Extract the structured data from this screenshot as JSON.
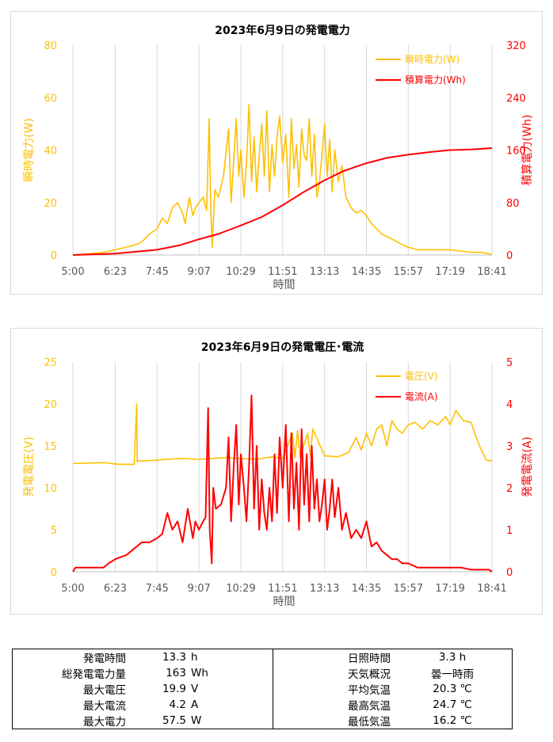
{
  "chart_data": [
    {
      "type": "line",
      "title": "2023年6月9日の発電電力",
      "xlabel": "時間",
      "ylabel_left": "瞬時電力(W)",
      "ylabel_right": "積算電力(Wh)",
      "x_ticks": [
        "5:00",
        "6:23",
        "7:45",
        "9:07",
        "10:29",
        "11:51",
        "13:13",
        "14:35",
        "15:57",
        "17:19",
        "18:41"
      ],
      "ylim_left": [
        0,
        80
      ],
      "yticks_left": [
        "0",
        "20",
        "40",
        "60",
        "80"
      ],
      "ylim_right": [
        0,
        320
      ],
      "yticks_right": [
        "0",
        "80",
        "160",
        "240",
        "320"
      ],
      "grid": "vertical",
      "legend_position": "top-right",
      "series": [
        {
          "name": "瞬時電力(W)",
          "axis": "left",
          "color": "#FFC000",
          "x": [
            "5:00",
            "6:00",
            "6:23",
            "6:45",
            "7:05",
            "7:15",
            "7:30",
            "7:45",
            "7:55",
            "8:05",
            "8:15",
            "8:25",
            "8:35",
            "8:40",
            "8:48",
            "8:55",
            "9:00",
            "9:07",
            "9:15",
            "9:22",
            "9:27",
            "9:30",
            "9:33",
            "9:38",
            "9:45",
            "9:55",
            "10:05",
            "10:10",
            "10:15",
            "10:20",
            "10:25",
            "10:29",
            "10:35",
            "10:40",
            "10:45",
            "10:50",
            "10:55",
            "11:00",
            "11:05",
            "11:10",
            "11:15",
            "11:20",
            "11:25",
            "11:30",
            "11:35",
            "11:40",
            "11:45",
            "11:51",
            "11:57",
            "12:03",
            "12:08",
            "12:13",
            "12:18",
            "12:23",
            "12:28",
            "12:33",
            "12:38",
            "12:43",
            "12:48",
            "12:53",
            "12:58",
            "13:03",
            "13:08",
            "13:13",
            "13:18",
            "13:23",
            "13:28",
            "13:33",
            "13:40",
            "13:47",
            "13:55",
            "14:05",
            "14:15",
            "14:25",
            "14:35",
            "14:45",
            "14:55",
            "15:05",
            "15:15",
            "15:25",
            "15:35",
            "15:45",
            "15:57",
            "16:15",
            "16:35",
            "16:55",
            "17:19",
            "17:40",
            "18:00",
            "18:20",
            "18:35",
            "18:41"
          ],
          "values": [
            0,
            1,
            2,
            3,
            4,
            5,
            8,
            10,
            14,
            12,
            18,
            20,
            16,
            12,
            22,
            15,
            18,
            20,
            22,
            17,
            52,
            18,
            3,
            25,
            22,
            30,
            48,
            20,
            36,
            52,
            30,
            40,
            22,
            35,
            57.5,
            28,
            45,
            24,
            38,
            50,
            30,
            55,
            24,
            42,
            30,
            45,
            53,
            35,
            46,
            22,
            52,
            33,
            42,
            26,
            48,
            38,
            36,
            52,
            30,
            46,
            22,
            28,
            38,
            50,
            30,
            44,
            24,
            40,
            28,
            34,
            22,
            18,
            16,
            17,
            15,
            12,
            10,
            8,
            7,
            6,
            5,
            4,
            3,
            2,
            2,
            2,
            2,
            1.5,
            1,
            1,
            0.5,
            0
          ]
        },
        {
          "name": "積算電力(Wh)",
          "axis": "right",
          "color": "#FF0000",
          "x": [
            "5:00",
            "6:23",
            "7:45",
            "8:30",
            "9:07",
            "9:45",
            "10:29",
            "11:10",
            "11:51",
            "12:30",
            "13:13",
            "13:50",
            "14:35",
            "15:15",
            "15:57",
            "16:40",
            "17:19",
            "18:00",
            "18:41"
          ],
          "values": [
            0,
            2,
            8,
            15,
            24,
            32,
            45,
            58,
            76,
            95,
            114,
            128,
            140,
            148,
            153,
            157,
            160,
            161,
            163
          ]
        }
      ]
    },
    {
      "type": "line",
      "title": "2023年6月9日の発電電圧･電流",
      "xlabel": "時間",
      "ylabel_left": "発電電圧(V)",
      "ylabel_right": "発電電流(A)",
      "x_ticks": [
        "5:00",
        "6:23",
        "7:45",
        "9:07",
        "10:29",
        "11:51",
        "13:13",
        "14:35",
        "15:57",
        "17:19",
        "18:41"
      ],
      "ylim_left": [
        0,
        25
      ],
      "yticks_left": [
        "0",
        "5",
        "10",
        "15",
        "20",
        "25"
      ],
      "ylim_right": [
        0,
        5
      ],
      "yticks_right": [
        "0",
        "1",
        "2",
        "3",
        "4",
        "5"
      ],
      "grid": "vertical",
      "legend_position": "top-right",
      "series": [
        {
          "name": "電圧(V)",
          "axis": "left",
          "color": "#FFC000",
          "x": [
            "5:00",
            "6:00",
            "6:30",
            "7:00",
            "7:05",
            "7:06",
            "7:07",
            "7:15",
            "7:45",
            "8:30",
            "9:07",
            "10:00",
            "10:29",
            "11:00",
            "11:30",
            "11:51",
            "12:10",
            "12:15",
            "12:20",
            "12:25",
            "12:40",
            "12:45",
            "12:50",
            "13:13",
            "13:40",
            "14:00",
            "14:15",
            "14:25",
            "14:35",
            "14:45",
            "14:55",
            "15:05",
            "15:15",
            "15:25",
            "15:35",
            "15:45",
            "15:57",
            "16:10",
            "16:25",
            "16:40",
            "16:55",
            "17:10",
            "17:19",
            "17:30",
            "17:45",
            "18:00",
            "18:10",
            "18:20",
            "18:30",
            "18:41"
          ],
          "values": [
            12.9,
            13.0,
            12.8,
            12.8,
            20,
            13.1,
            13.2,
            13.2,
            13.3,
            13.5,
            13.4,
            13.6,
            13.5,
            13.4,
            13.7,
            13.5,
            16.5,
            13.6,
            16.8,
            13.7,
            16.5,
            13.7,
            17,
            13.8,
            13.7,
            14.2,
            16,
            14.5,
            16.5,
            15,
            17,
            17.5,
            15,
            18,
            17,
            16.5,
            17.5,
            17.8,
            17,
            18,
            17.5,
            18.5,
            17.5,
            19.2,
            18,
            17.8,
            16,
            14.5,
            13.3,
            13.2
          ]
        },
        {
          "name": "電流(A)",
          "axis": "right",
          "color": "#FF0000",
          "x": [
            "5:00",
            "5:05",
            "6:00",
            "6:10",
            "6:23",
            "6:45",
            "7:05",
            "7:15",
            "7:30",
            "7:45",
            "7:55",
            "8:05",
            "8:15",
            "8:25",
            "8:35",
            "8:45",
            "8:55",
            "9:00",
            "9:07",
            "9:15",
            "9:20",
            "9:25",
            "9:28",
            "9:32",
            "9:35",
            "9:40",
            "9:50",
            "10:00",
            "10:05",
            "10:10",
            "10:15",
            "10:20",
            "10:25",
            "10:29",
            "10:35",
            "10:40",
            "10:45",
            "10:50",
            "10:55",
            "11:00",
            "11:05",
            "11:10",
            "11:15",
            "11:20",
            "11:25",
            "11:30",
            "11:35",
            "11:40",
            "11:45",
            "11:51",
            "11:57",
            "12:03",
            "12:08",
            "12:13",
            "12:18",
            "12:23",
            "12:28",
            "12:33",
            "12:38",
            "12:43",
            "12:48",
            "12:53",
            "12:58",
            "13:03",
            "13:08",
            "13:13",
            "13:18",
            "13:23",
            "13:28",
            "13:33",
            "13:40",
            "13:47",
            "13:55",
            "14:05",
            "14:15",
            "14:25",
            "14:35",
            "14:45",
            "14:55",
            "15:05",
            "15:15",
            "15:25",
            "15:35",
            "15:45",
            "15:57",
            "16:15",
            "16:35",
            "16:55",
            "17:19",
            "17:40",
            "18:00",
            "18:20",
            "18:35",
            "18:41"
          ],
          "values": [
            0,
            0.1,
            0.1,
            0.2,
            0.3,
            0.4,
            0.6,
            0.7,
            0.7,
            0.8,
            0.9,
            1.4,
            1.0,
            1.2,
            0.7,
            1.5,
            0.8,
            1.2,
            1.0,
            1.2,
            1.3,
            3.9,
            1.0,
            0.2,
            2.0,
            1.5,
            1.6,
            2.0,
            3.2,
            1.2,
            2.5,
            3.5,
            1.6,
            2.8,
            2.0,
            1.2,
            2.5,
            4.2,
            1.5,
            3.0,
            1.0,
            2.2,
            1.4,
            1.0,
            2.0,
            1.2,
            2.8,
            1.4,
            3.2,
            2.0,
            3.5,
            1.2,
            3.3,
            1.5,
            2.6,
            1.0,
            3.4,
            1.6,
            2.8,
            1.2,
            3.0,
            1.5,
            2.2,
            1.2,
            1.6,
            2.2,
            1.0,
            1.5,
            2.2,
            1.3,
            2.0,
            1.0,
            1.4,
            0.8,
            1.0,
            0.8,
            1.2,
            0.6,
            0.7,
            0.5,
            0.4,
            0.3,
            0.3,
            0.2,
            0.2,
            0.1,
            0.1,
            0.1,
            0.1,
            0.1,
            0.05,
            0.05,
            0.05,
            0
          ]
        }
      ]
    }
  ],
  "summary": {
    "left": [
      {
        "label": "発電時間",
        "value": "13.3",
        "unit": "h"
      },
      {
        "label": "総発電電力量",
        "value": "163",
        "unit": "Wh"
      },
      {
        "label": "最大電圧",
        "value": "19.9",
        "unit": "V"
      },
      {
        "label": "最大電流",
        "value": "4.2",
        "unit": "A"
      },
      {
        "label": "最大電力",
        "value": "57.5",
        "unit": "W"
      }
    ],
    "right": [
      {
        "label": "日照時間",
        "value": "3.3 h"
      },
      {
        "label": "天気概況",
        "value": "曇一時雨"
      },
      {
        "label": "平均気温",
        "value": "20.3 ℃"
      },
      {
        "label": "最高気温",
        "value": "24.7 ℃"
      },
      {
        "label": "最低気温",
        "value": "16.2 ℃"
      }
    ]
  }
}
